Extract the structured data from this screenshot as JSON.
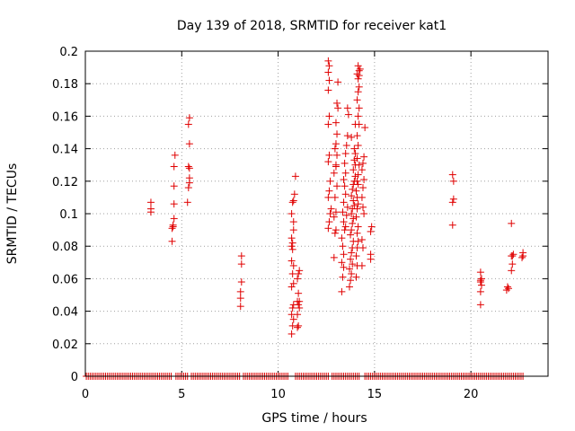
{
  "chart_data": {
    "type": "scatter",
    "title": "Day 139 of 2018, SRMTID for receiver kat1",
    "xlabel": "GPS time / hours",
    "ylabel": "SRMTID / TECUs",
    "xlim": [
      0,
      24
    ],
    "ylim": [
      0,
      0.2
    ],
    "xticks": [
      0,
      5,
      10,
      15,
      20
    ],
    "xtick_labels": [
      "0",
      "5",
      "10",
      "15",
      "20"
    ],
    "yticks": [
      0,
      0.02,
      0.04,
      0.06,
      0.08,
      0.1,
      0.12,
      0.14,
      0.16,
      0.18,
      0.2
    ],
    "ytick_labels": [
      "0",
      "0.02",
      "0.04",
      "0.06",
      "0.08",
      "0.1",
      "0.12",
      "0.14",
      "0.16",
      "0.18",
      "0.2"
    ],
    "grid": true,
    "marker": "+",
    "color": "#e00000",
    "zero_series": {
      "x_ranges": [
        [
          0.05,
          4.5
        ],
        [
          4.7,
          5.3
        ],
        [
          5.5,
          8.0
        ],
        [
          8.2,
          10.5
        ],
        [
          10.9,
          12.6
        ],
        [
          12.8,
          14.2
        ],
        [
          14.5,
          22.7
        ]
      ],
      "y": 0
    },
    "points": [
      [
        3.4,
        0.103
      ],
      [
        3.4,
        0.107
      ],
      [
        3.4,
        0.101
      ],
      [
        4.5,
        0.083
      ],
      [
        4.5,
        0.091
      ],
      [
        4.55,
        0.092
      ],
      [
        4.6,
        0.097
      ],
      [
        4.6,
        0.106
      ],
      [
        4.6,
        0.117
      ],
      [
        4.6,
        0.129
      ],
      [
        4.65,
        0.136
      ],
      [
        4.55,
        0.093
      ],
      [
        5.3,
        0.107
      ],
      [
        5.35,
        0.116
      ],
      [
        5.4,
        0.119
      ],
      [
        5.4,
        0.122
      ],
      [
        5.35,
        0.129
      ],
      [
        5.4,
        0.128
      ],
      [
        5.4,
        0.143
      ],
      [
        5.35,
        0.155
      ],
      [
        5.4,
        0.159
      ],
      [
        8.05,
        0.043
      ],
      [
        8.05,
        0.048
      ],
      [
        8.05,
        0.052
      ],
      [
        8.1,
        0.058
      ],
      [
        8.1,
        0.069
      ],
      [
        8.1,
        0.074
      ],
      [
        10.7,
        0.026
      ],
      [
        10.75,
        0.031
      ],
      [
        10.8,
        0.035
      ],
      [
        10.7,
        0.038
      ],
      [
        10.75,
        0.042
      ],
      [
        10.8,
        0.044
      ],
      [
        10.7,
        0.055
      ],
      [
        10.8,
        0.057
      ],
      [
        10.75,
        0.063
      ],
      [
        10.8,
        0.068
      ],
      [
        10.7,
        0.071
      ],
      [
        10.75,
        0.078
      ],
      [
        10.7,
        0.08
      ],
      [
        10.75,
        0.082
      ],
      [
        10.7,
        0.085
      ],
      [
        10.8,
        0.09
      ],
      [
        10.8,
        0.095
      ],
      [
        10.7,
        0.1
      ],
      [
        10.75,
        0.107
      ],
      [
        10.8,
        0.108
      ],
      [
        10.85,
        0.112
      ],
      [
        10.9,
        0.123
      ],
      [
        11.0,
        0.03
      ],
      [
        11.05,
        0.031
      ],
      [
        11.0,
        0.038
      ],
      [
        11.1,
        0.042
      ],
      [
        11.05,
        0.044
      ],
      [
        11.1,
        0.046
      ],
      [
        11.0,
        0.046
      ],
      [
        11.05,
        0.051
      ],
      [
        11.0,
        0.06
      ],
      [
        11.1,
        0.065
      ],
      [
        11.05,
        0.063
      ],
      [
        12.6,
        0.091
      ],
      [
        12.65,
        0.095
      ],
      [
        12.7,
        0.1
      ],
      [
        12.75,
        0.103
      ],
      [
        12.6,
        0.11
      ],
      [
        12.65,
        0.114
      ],
      [
        12.7,
        0.12
      ],
      [
        12.6,
        0.132
      ],
      [
        12.65,
        0.136
      ],
      [
        12.6,
        0.155
      ],
      [
        12.65,
        0.16
      ],
      [
        12.6,
        0.176
      ],
      [
        12.65,
        0.182
      ],
      [
        12.6,
        0.187
      ],
      [
        12.65,
        0.191
      ],
      [
        12.6,
        0.194
      ],
      [
        12.9,
        0.073
      ],
      [
        12.95,
        0.088
      ],
      [
        13.0,
        0.09
      ],
      [
        12.9,
        0.098
      ],
      [
        13.0,
        0.101
      ],
      [
        12.95,
        0.11
      ],
      [
        13.05,
        0.117
      ],
      [
        12.9,
        0.125
      ],
      [
        13.0,
        0.129
      ],
      [
        13.05,
        0.136
      ],
      [
        12.95,
        0.14
      ],
      [
        13.0,
        0.143
      ],
      [
        13.05,
        0.149
      ],
      [
        13.0,
        0.156
      ],
      [
        13.1,
        0.165
      ],
      [
        13.05,
        0.168
      ],
      [
        13.1,
        0.181
      ],
      [
        13.0,
        0.13
      ],
      [
        13.3,
        0.052
      ],
      [
        13.35,
        0.061
      ],
      [
        13.4,
        0.067
      ],
      [
        13.3,
        0.07
      ],
      [
        13.4,
        0.075
      ],
      [
        13.35,
        0.08
      ],
      [
        13.3,
        0.085
      ],
      [
        13.45,
        0.09
      ],
      [
        13.4,
        0.095
      ],
      [
        13.35,
        0.101
      ],
      [
        13.4,
        0.107
      ],
      [
        13.5,
        0.112
      ],
      [
        13.45,
        0.117
      ],
      [
        13.4,
        0.121
      ],
      [
        13.5,
        0.125
      ],
      [
        13.45,
        0.131
      ],
      [
        13.5,
        0.137
      ],
      [
        13.55,
        0.142
      ],
      [
        13.6,
        0.148
      ],
      [
        13.65,
        0.161
      ],
      [
        13.6,
        0.165
      ],
      [
        13.5,
        0.092
      ],
      [
        13.55,
        0.099
      ],
      [
        13.6,
        0.104
      ],
      [
        13.7,
        0.055
      ],
      [
        13.75,
        0.059
      ],
      [
        13.8,
        0.063
      ],
      [
        13.7,
        0.066
      ],
      [
        13.85,
        0.069
      ],
      [
        13.75,
        0.072
      ],
      [
        13.8,
        0.076
      ],
      [
        13.85,
        0.079
      ],
      [
        13.9,
        0.083
      ],
      [
        13.75,
        0.087
      ],
      [
        13.8,
        0.09
      ],
      [
        13.85,
        0.094
      ],
      [
        13.9,
        0.097
      ],
      [
        13.8,
        0.1
      ],
      [
        13.85,
        0.103
      ],
      [
        13.95,
        0.105
      ],
      [
        13.9,
        0.108
      ],
      [
        13.8,
        0.111
      ],
      [
        13.85,
        0.115
      ],
      [
        13.9,
        0.118
      ],
      [
        13.95,
        0.12
      ],
      [
        14.0,
        0.123
      ],
      [
        13.9,
        0.127
      ],
      [
        14.0,
        0.13
      ],
      [
        13.95,
        0.133
      ],
      [
        14.0,
        0.137
      ],
      [
        13.95,
        0.14
      ],
      [
        13.8,
        0.147
      ],
      [
        14.0,
        0.155
      ],
      [
        14.05,
        0.061
      ],
      [
        14.1,
        0.068
      ],
      [
        14.05,
        0.074
      ],
      [
        14.1,
        0.079
      ],
      [
        14.15,
        0.083
      ],
      [
        14.1,
        0.088
      ],
      [
        14.15,
        0.092
      ],
      [
        14.05,
        0.098
      ],
      [
        14.1,
        0.103
      ],
      [
        14.15,
        0.106
      ],
      [
        14.1,
        0.11
      ],
      [
        14.05,
        0.114
      ],
      [
        14.15,
        0.118
      ],
      [
        14.1,
        0.12
      ],
      [
        14.15,
        0.124
      ],
      [
        14.2,
        0.13
      ],
      [
        14.1,
        0.134
      ],
      [
        14.15,
        0.142
      ],
      [
        14.1,
        0.148
      ],
      [
        14.2,
        0.155
      ],
      [
        14.15,
        0.16
      ],
      [
        14.2,
        0.165
      ],
      [
        14.1,
        0.17
      ],
      [
        14.15,
        0.175
      ],
      [
        14.2,
        0.178
      ],
      [
        14.15,
        0.183
      ],
      [
        14.1,
        0.186
      ],
      [
        14.2,
        0.188
      ],
      [
        14.15,
        0.191
      ],
      [
        14.25,
        0.189
      ],
      [
        14.2,
        0.185
      ],
      [
        14.35,
        0.068
      ],
      [
        14.4,
        0.079
      ],
      [
        14.35,
        0.084
      ],
      [
        14.45,
        0.1
      ],
      [
        14.4,
        0.104
      ],
      [
        14.35,
        0.11
      ],
      [
        14.4,
        0.116
      ],
      [
        14.45,
        0.121
      ],
      [
        14.35,
        0.127
      ],
      [
        14.4,
        0.131
      ],
      [
        14.45,
        0.135
      ],
      [
        14.5,
        0.153
      ],
      [
        14.8,
        0.072
      ],
      [
        14.8,
        0.075
      ],
      [
        14.8,
        0.089
      ],
      [
        14.85,
        0.092
      ],
      [
        19.05,
        0.093
      ],
      [
        19.05,
        0.107
      ],
      [
        19.1,
        0.109
      ],
      [
        19.1,
        0.12
      ],
      [
        19.05,
        0.124
      ],
      [
        20.5,
        0.044
      ],
      [
        20.5,
        0.052
      ],
      [
        20.55,
        0.056
      ],
      [
        20.5,
        0.058
      ],
      [
        20.5,
        0.059
      ],
      [
        20.55,
        0.06
      ],
      [
        20.5,
        0.064
      ],
      [
        21.85,
        0.053
      ],
      [
        21.9,
        0.055
      ],
      [
        21.95,
        0.054
      ],
      [
        22.1,
        0.065
      ],
      [
        22.15,
        0.069
      ],
      [
        22.1,
        0.074
      ],
      [
        22.2,
        0.075
      ],
      [
        22.15,
        0.074
      ],
      [
        22.1,
        0.094
      ],
      [
        22.65,
        0.073
      ],
      [
        22.7,
        0.076
      ],
      [
        22.7,
        0.074
      ]
    ]
  }
}
